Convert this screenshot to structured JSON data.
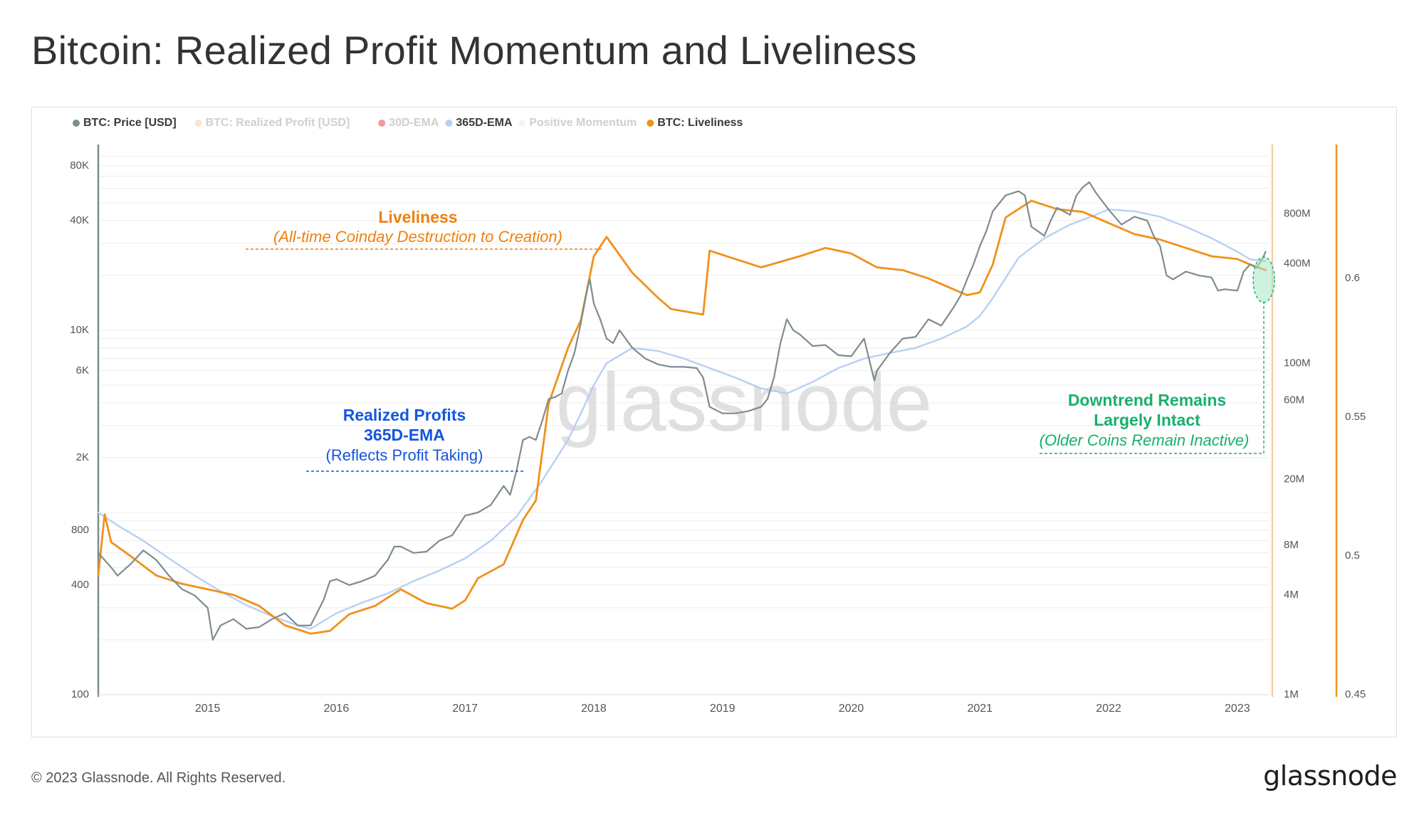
{
  "page": {
    "title": "Bitcoin: Realized Profit Momentum and Liveliness",
    "copyright": "© 2023 Glassnode. All Rights Reserved.",
    "logo_text": "glassnode",
    "watermark": "glassnode"
  },
  "colors": {
    "price": "#7e8c8f",
    "ema365": "#b8cff5",
    "liveliness": "#f0911a",
    "realized_profit": "#f7cfa3",
    "ema30": "#e84444",
    "positive_momentum": "#ece9f5",
    "annotation_orange": "#f07f0e",
    "annotation_blue": "#1556e0",
    "annotation_green": "#18b06c",
    "grid": "#ececec",
    "axis_text": "#555555"
  },
  "chart_data": {
    "type": "line",
    "legend_position": "top-left",
    "legend": [
      {
        "label": "BTC: Price [USD]",
        "color": "#7e8c8f",
        "active": true
      },
      {
        "label": "BTC: Realized Profit [USD]",
        "color": "#f7cfa3",
        "active": false
      },
      {
        "label": "30D-EMA",
        "color": "#e84444",
        "active": false
      },
      {
        "label": "365D-EMA",
        "color": "#b8cff5",
        "active": true
      },
      {
        "label": "Positive Momentum",
        "color": "#ece9f5",
        "active": false
      },
      {
        "label": "BTC: Liveliness",
        "color": "#f0911a",
        "active": true
      }
    ],
    "x_axis": {
      "type": "time",
      "range": [
        2014.15,
        2023.25
      ],
      "ticks": [
        "2015",
        "2016",
        "2017",
        "2018",
        "2019",
        "2020",
        "2021",
        "2022",
        "2023"
      ],
      "tick_values": [
        2015,
        2016,
        2017,
        2018,
        2019,
        2020,
        2021,
        2022,
        2023
      ]
    },
    "y_axes": {
      "price": {
        "scale": "log",
        "range": [
          100,
          100000
        ],
        "ticks": [
          "80K",
          "40K",
          "10K",
          "6K",
          "2K",
          "800",
          "400",
          "100"
        ],
        "tick_values": [
          80000,
          40000,
          10000,
          6000,
          2000,
          800,
          400,
          100
        ]
      },
      "realized_profit": {
        "scale": "log",
        "range": [
          1000000,
          2000000000
        ],
        "ticks": [
          "800M",
          "400M",
          "100M",
          "60M",
          "20M",
          "8M",
          "4M",
          "1M"
        ],
        "tick_values": [
          800000000,
          400000000,
          100000000,
          60000000,
          20000000,
          8000000,
          4000000,
          1000000
        ]
      },
      "liveliness": {
        "scale": "linear",
        "range": [
          0.45,
          0.647
        ],
        "ticks": [
          "0.6",
          "0.55",
          "0.5",
          "0.45"
        ],
        "tick_values": [
          0.6,
          0.55,
          0.5,
          0.45
        ]
      }
    },
    "series": [
      {
        "name": "BTC: Price [USD]",
        "axis": "price",
        "x": [
          2014.15,
          2014.25,
          2014.3,
          2014.4,
          2014.5,
          2014.6,
          2014.7,
          2014.8,
          2014.9,
          2015.0,
          2015.04,
          2015.1,
          2015.2,
          2015.3,
          2015.4,
          2015.5,
          2015.6,
          2015.7,
          2015.8,
          2015.9,
          2015.95,
          2016.0,
          2016.1,
          2016.2,
          2016.3,
          2016.4,
          2016.45,
          2016.5,
          2016.6,
          2016.7,
          2016.8,
          2016.9,
          2017.0,
          2017.1,
          2017.2,
          2017.3,
          2017.35,
          2017.4,
          2017.45,
          2017.5,
          2017.55,
          2017.6,
          2017.65,
          2017.7,
          2017.75,
          2017.8,
          2017.85,
          2017.9,
          2017.95,
          2017.97,
          2018.0,
          2018.05,
          2018.1,
          2018.15,
          2018.2,
          2018.3,
          2018.4,
          2018.5,
          2018.6,
          2018.7,
          2018.8,
          2018.85,
          2018.9,
          2019.0,
          2019.1,
          2019.2,
          2019.3,
          2019.35,
          2019.4,
          2019.45,
          2019.5,
          2019.55,
          2019.6,
          2019.7,
          2019.8,
          2019.9,
          2020.0,
          2020.1,
          2020.18,
          2020.2,
          2020.3,
          2020.4,
          2020.5,
          2020.6,
          2020.7,
          2020.8,
          2020.85,
          2020.9,
          2020.95,
          2021.0,
          2021.05,
          2021.1,
          2021.2,
          2021.3,
          2021.35,
          2021.4,
          2021.45,
          2021.5,
          2021.55,
          2021.6,
          2021.7,
          2021.75,
          2021.8,
          2021.85,
          2021.9,
          2022.0,
          2022.1,
          2022.2,
          2022.3,
          2022.35,
          2022.4,
          2022.45,
          2022.5,
          2022.6,
          2022.7,
          2022.8,
          2022.85,
          2022.9,
          2023.0,
          2023.05,
          2023.1,
          2023.15,
          2023.2,
          2023.22
        ],
        "values": [
          600,
          500,
          450,
          520,
          620,
          550,
          450,
          380,
          350,
          300,
          200,
          240,
          260,
          230,
          235,
          260,
          280,
          240,
          240,
          330,
          420,
          430,
          400,
          420,
          450,
          550,
          650,
          650,
          600,
          610,
          700,
          750,
          960,
          1000,
          1100,
          1400,
          1250,
          1700,
          2500,
          2600,
          2500,
          3200,
          4200,
          4300,
          4500,
          6000,
          7500,
          11000,
          17000,
          19000,
          14000,
          11500,
          9000,
          8500,
          10000,
          8000,
          7000,
          6500,
          6300,
          6300,
          6200,
          5500,
          3800,
          3500,
          3500,
          3600,
          3800,
          4200,
          5500,
          8500,
          11500,
          10000,
          9500,
          8200,
          8300,
          7300,
          7200,
          9000,
          5300,
          6000,
          7500,
          9000,
          9200,
          11500,
          10600,
          13500,
          15500,
          19000,
          23000,
          29000,
          35000,
          45000,
          55000,
          58000,
          55000,
          37000,
          35000,
          33000,
          40000,
          47000,
          43000,
          55000,
          61000,
          65000,
          57000,
          46000,
          38000,
          42000,
          40000,
          33000,
          29000,
          20000,
          19000,
          21000,
          20000,
          19500,
          16500,
          16800,
          16500,
          21000,
          23000,
          22000,
          25000,
          27000
        ]
      },
      {
        "name": "365D-EMA",
        "axis": "price",
        "x": [
          2014.15,
          2014.3,
          2014.5,
          2014.7,
          2014.9,
          2015.1,
          2015.3,
          2015.5,
          2015.7,
          2015.8,
          2016.0,
          2016.2,
          2016.4,
          2016.6,
          2016.8,
          2017.0,
          2017.2,
          2017.4,
          2017.6,
          2017.8,
          2017.9,
          2018.0,
          2018.1,
          2018.3,
          2018.5,
          2018.7,
          2018.9,
          2019.1,
          2019.3,
          2019.5,
          2019.7,
          2019.9,
          2020.1,
          2020.3,
          2020.5,
          2020.7,
          2020.9,
          2021.0,
          2021.1,
          2021.3,
          2021.5,
          2021.7,
          2021.9,
          2022.0,
          2022.2,
          2022.4,
          2022.6,
          2022.8,
          2023.0,
          2023.1,
          2023.22
        ],
        "values": [
          1000,
          850,
          700,
          560,
          450,
          370,
          310,
          270,
          240,
          230,
          280,
          320,
          360,
          420,
          480,
          560,
          700,
          950,
          1500,
          2500,
          3500,
          5000,
          6600,
          8000,
          7700,
          7000,
          6200,
          5500,
          4800,
          4500,
          5200,
          6200,
          7000,
          7500,
          8000,
          9000,
          10500,
          12000,
          15000,
          25000,
          32000,
          38000,
          43000,
          46000,
          45000,
          42000,
          37000,
          32000,
          27000,
          24500,
          24000
        ]
      },
      {
        "name": "BTC: Liveliness",
        "axis": "liveliness",
        "x": [
          2014.15,
          2014.2,
          2014.25,
          2014.4,
          2014.6,
          2014.8,
          2015.0,
          2015.2,
          2015.4,
          2015.6,
          2015.8,
          2015.95,
          2016.1,
          2016.3,
          2016.5,
          2016.7,
          2016.9,
          2017.0,
          2017.1,
          2017.3,
          2017.45,
          2017.55,
          2017.65,
          2017.8,
          2017.9,
          2018.0,
          2018.1,
          2018.3,
          2018.5,
          2018.6,
          2018.85,
          2018.9,
          2019.1,
          2019.3,
          2019.6,
          2019.8,
          2020.0,
          2020.2,
          2020.4,
          2020.6,
          2020.8,
          2020.9,
          2021.0,
          2021.1,
          2021.2,
          2021.4,
          2021.6,
          2021.8,
          2022.0,
          2022.2,
          2022.4,
          2022.6,
          2022.8,
          2023.0,
          2023.1,
          2023.22
        ],
        "values": [
          0.493,
          0.515,
          0.505,
          0.5,
          0.493,
          0.49,
          0.488,
          0.486,
          0.482,
          0.475,
          0.472,
          0.473,
          0.479,
          0.482,
          0.488,
          0.483,
          0.481,
          0.484,
          0.492,
          0.497,
          0.513,
          0.52,
          0.555,
          0.575,
          0.585,
          0.608,
          0.615,
          0.602,
          0.593,
          0.589,
          0.587,
          0.61,
          0.607,
          0.604,
          0.608,
          0.611,
          0.609,
          0.604,
          0.603,
          0.6,
          0.596,
          0.594,
          0.595,
          0.605,
          0.622,
          0.628,
          0.625,
          0.624,
          0.62,
          0.616,
          0.614,
          0.611,
          0.608,
          0.607,
          0.605,
          0.603
        ]
      }
    ],
    "annotations": [
      {
        "title": "Liveliness",
        "subtitle": "(All-time Coinday Destruction to Creation)",
        "color": "#f07f0e"
      },
      {
        "title_line1": "Realized Profits",
        "title_line2": "365D-EMA",
        "subtitle": "(Reflects Profit Taking)",
        "color": "#1556e0"
      },
      {
        "title_line1": "Downtrend Remains",
        "title_line2": "Largely Intact",
        "subtitle": "(Older Coins Remain Inactive)",
        "color": "#18b06c"
      }
    ]
  }
}
